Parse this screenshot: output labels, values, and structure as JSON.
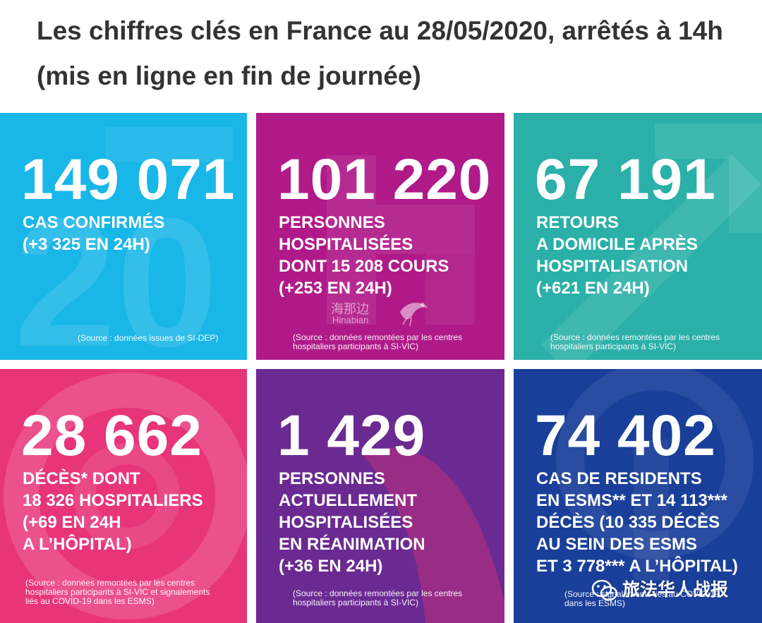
{
  "header": {
    "title": "Les chiffres clés en France au 28/05/2020, arrêtés à 14h (mis en ligne en fin de journée)"
  },
  "tiles": [
    {
      "number": "149 071",
      "description": "CAS CONFIRMÉS\n(+3 325 EN 24H)",
      "source": "(Source : données issues de SI-DEP)",
      "color": "#19b6e8"
    },
    {
      "number": "101 220",
      "description": "PERSONNES\nHOSPITALISÉES\nDONT 15 208 COURS\n(+253 EN 24H)",
      "source": "(Source : données remontées par les centres\nhospitaliers participants à SI-VIC)",
      "color": "#b01a88"
    },
    {
      "number": "67 191",
      "description": "RETOURS\nA DOMICILE APRÈS\nHOSPITALISATION\n(+621 EN 24H)",
      "source": "(Source : données remontées par les centres\nhospitaliers participants à SI-VIC)",
      "color": "#2ab0a8"
    },
    {
      "number": "28 662",
      "description": "DÉCÈS* DONT\n18 326 HOSPITALIERS\n(+69 EN 24H\nA L’HÔPITAL)",
      "source": "(Source : données remontées par les centres\nhospitaliers participants à SI-VIC et signalements\nliés au COVID-19 dans les ESMS)",
      "color": "#e8357a"
    },
    {
      "number": "1 429",
      "description": "PERSONNES\nACTUELLEMENT\nHOSPITALISÉES\nEN RÉANIMATION\n(+36 EN 24H)",
      "source": "(Source : données remontées par les centres\nhospitaliers participants à SI-VIC)",
      "color": "#6a2a92"
    },
    {
      "number": "74 402",
      "description": "CAS DE RESIDENTS\nEN ESMS** ET 14 113***\nDÉCÈS (10 335 DÉCÈS\nAU SEIN DES ESMS\nET 3 778*** A L’HÔPITAL)",
      "source": "(Source : signalements liés au COVID-19\ndans les ESMS)",
      "color": "#1a3f9a"
    }
  ],
  "watermark": {
    "chinese": "海那边",
    "latin": "Hinabian"
  },
  "brand": {
    "icon": "wechat-icon",
    "label": "旅法华人战报"
  }
}
